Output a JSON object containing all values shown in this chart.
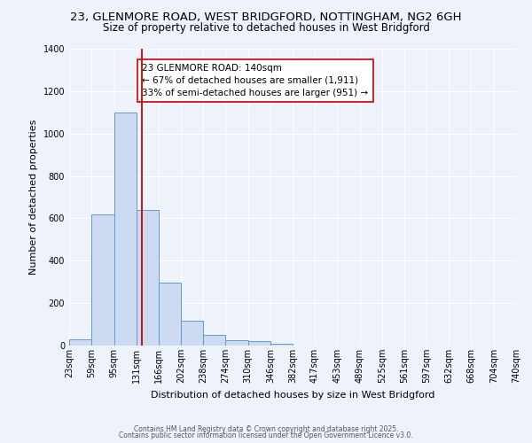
{
  "title": "23, GLENMORE ROAD, WEST BRIDGFORD, NOTTINGHAM, NG2 6GH",
  "subtitle": "Size of property relative to detached houses in West Bridgford",
  "xlabel": "Distribution of detached houses by size in West Bridgford",
  "ylabel": "Number of detached properties",
  "bar_labels": [
    "23sqm",
    "59sqm",
    "95sqm",
    "131sqm",
    "166sqm",
    "202sqm",
    "238sqm",
    "274sqm",
    "310sqm",
    "346sqm",
    "382sqm",
    "417sqm",
    "453sqm",
    "489sqm",
    "525sqm",
    "561sqm",
    "597sqm",
    "632sqm",
    "668sqm",
    "704sqm",
    "740sqm"
  ],
  "bar_values": [
    30,
    620,
    1100,
    640,
    295,
    115,
    50,
    25,
    20,
    10,
    0,
    0,
    0,
    0,
    0,
    0,
    0,
    0,
    0,
    0,
    0
  ],
  "bin_edges": [
    23,
    59,
    95,
    131,
    166,
    202,
    238,
    274,
    310,
    346,
    382,
    417,
    453,
    489,
    525,
    561,
    597,
    632,
    668,
    704,
    740
  ],
  "bar_color": "#ccdaf2",
  "bar_edge_color": "#6699cc",
  "vline_x": 140,
  "vline_color": "#cc0000",
  "ylim": [
    0,
    1400
  ],
  "yticks": [
    0,
    200,
    400,
    600,
    800,
    1000,
    1200,
    1400
  ],
  "annotation_text": "23 GLENMORE ROAD: 140sqm\n← 67% of detached houses are smaller (1,911)\n33% of semi-detached houses are larger (951) →",
  "annotation_box_color": "#ffffff",
  "annotation_box_edge": "#cc0000",
  "footer_line1": "Contains HM Land Registry data © Crown copyright and database right 2025.",
  "footer_line2": "Contains public sector information licensed under the Open Government Licence v3.0.",
  "background_color": "#eef2fb",
  "title_fontsize": 9.5,
  "subtitle_fontsize": 8.5,
  "tick_fontsize": 7,
  "axis_label_fontsize": 8,
  "annotation_fontsize": 7.5
}
